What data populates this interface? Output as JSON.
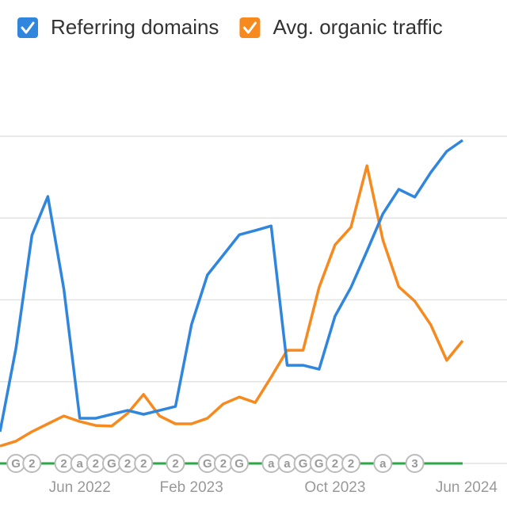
{
  "chart_data": {
    "type": "line",
    "categories": [
      null,
      null,
      null,
      null,
      null,
      "Jun 2022",
      null,
      null,
      null,
      null,
      null,
      null,
      "Feb 2023",
      null,
      null,
      null,
      null,
      null,
      null,
      null,
      null,
      "Oct 2023",
      null,
      null,
      null,
      null,
      null,
      null,
      null,
      "Jun 2024"
    ],
    "series": [
      {
        "name": "Referring domains",
        "color": "#2f86dc",
        "values": [
          9.7,
          35.1,
          69.7,
          81.6,
          53.3,
          13.8,
          13.8,
          15.0,
          16.2,
          15.0,
          16.2,
          17.4,
          42.4,
          57.6,
          63.7,
          69.9,
          71.2,
          72.6,
          30.0,
          30.0,
          28.8,
          45.0,
          53.8,
          64.9,
          76.3,
          83.8,
          81.4,
          88.9,
          95.4,
          98.8
        ]
      },
      {
        "name": "Avg. organic traffic",
        "color": "#f68a1f",
        "values": [
          5.3,
          6.8,
          9.7,
          12.1,
          14.5,
          12.8,
          11.6,
          11.4,
          15.3,
          21.1,
          14.5,
          12.1,
          12.1,
          13.8,
          18.2,
          20.3,
          18.6,
          26.4,
          34.6,
          34.6,
          53.8,
          66.8,
          72.2,
          91.0,
          68.3,
          54.0,
          49.6,
          42.4,
          31.5,
          37.5
        ]
      }
    ],
    "annotations": [
      {
        "x": 1,
        "label": "G"
      },
      {
        "x": 2,
        "label": "2"
      },
      {
        "x": 4,
        "label": "2"
      },
      {
        "x": 5,
        "label": "a"
      },
      {
        "x": 6,
        "label": "2"
      },
      {
        "x": 7,
        "label": "G"
      },
      {
        "x": 8,
        "label": "2"
      },
      {
        "x": 9,
        "label": "2"
      },
      {
        "x": 11,
        "label": "2"
      },
      {
        "x": 13,
        "label": "G"
      },
      {
        "x": 14,
        "label": "2"
      },
      {
        "x": 15,
        "label": "G"
      },
      {
        "x": 17,
        "label": "a"
      },
      {
        "x": 18,
        "label": "a"
      },
      {
        "x": 19,
        "label": "G"
      },
      {
        "x": 20,
        "label": "G"
      },
      {
        "x": 21,
        "label": "2"
      },
      {
        "x": 22,
        "label": "2"
      },
      {
        "x": 24,
        "label": "a"
      },
      {
        "x": 26,
        "label": "3"
      }
    ],
    "ylim": [
      0,
      125
    ],
    "yticks": [
      0,
      25,
      50,
      75,
      100
    ],
    "grid": true,
    "legend": "top"
  }
}
